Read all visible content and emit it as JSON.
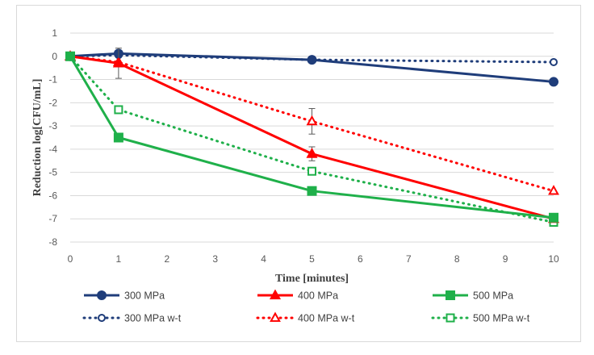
{
  "chart_data": {
    "type": "line",
    "title": "",
    "xlabel": "Time [minutes]",
    "ylabel": "Reduction log[CFU/mL]",
    "xlim": [
      0,
      10
    ],
    "ylim": [
      -8,
      1
    ],
    "x_ticks": [
      0,
      1,
      2,
      3,
      4,
      5,
      6,
      7,
      8,
      9,
      10
    ],
    "y_ticks": [
      1,
      0,
      -1,
      -2,
      -3,
      -4,
      -5,
      -6,
      -7,
      -8
    ],
    "grid": "horizontal",
    "legend_position": "bottom",
    "series": [
      {
        "name": "300 MPa",
        "color": "#1f3d7a",
        "style": "solid",
        "marker": "circle",
        "x": [
          0,
          1,
          5,
          10
        ],
        "y": [
          0,
          0.12,
          -0.15,
          -1.1
        ]
      },
      {
        "name": "400 MPa",
        "color": "#ff0000",
        "style": "solid",
        "marker": "triangle",
        "x": [
          0,
          1,
          5,
          10
        ],
        "y": [
          0,
          -0.3,
          -4.2,
          -7.0
        ],
        "error": [
          0,
          0.65,
          0.3,
          0
        ]
      },
      {
        "name": "500 MPa",
        "color": "#1fb04a",
        "style": "solid",
        "marker": "square",
        "x": [
          0,
          1,
          5,
          10
        ],
        "y": [
          0,
          -3.5,
          -5.8,
          -6.95
        ]
      },
      {
        "name": "300 MPa w-t",
        "color": "#1f3d7a",
        "style": "dotted",
        "marker": "circle-open",
        "x": [
          0,
          1,
          5,
          10
        ],
        "y": [
          0,
          0.05,
          -0.15,
          -0.25
        ]
      },
      {
        "name": "400 MPa w-t",
        "color": "#ff0000",
        "style": "dotted",
        "marker": "triangle-open",
        "x": [
          0,
          1,
          5,
          10
        ],
        "y": [
          0,
          -0.25,
          -2.8,
          -5.8
        ],
        "error": [
          0,
          0,
          0.55,
          0
        ]
      },
      {
        "name": "500 MPa w-t",
        "color": "#1fb04a",
        "style": "dotted",
        "marker": "square-open",
        "x": [
          0,
          1,
          5,
          10
        ],
        "y": [
          0,
          -2.3,
          -4.95,
          -7.15
        ]
      }
    ]
  }
}
